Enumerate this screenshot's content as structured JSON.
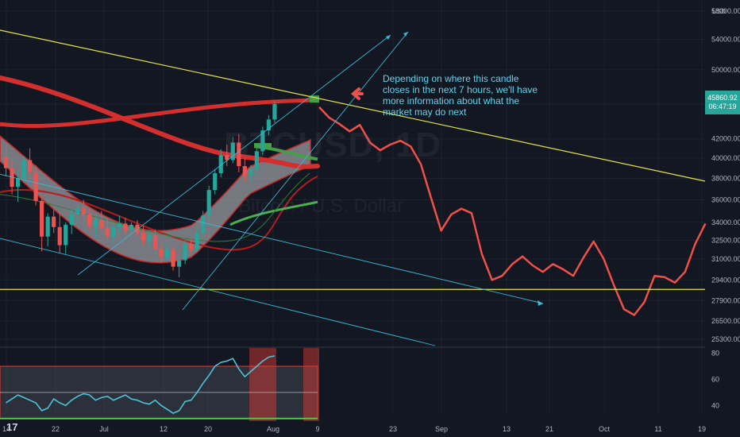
{
  "watermark": {
    "symbol": "BTCUSD, 1D",
    "name": "Bitcoin / U.S. Dollar"
  },
  "annotation": "Depending on where this candle closes in the next 7 hours, we'll have more information about what the market may do next",
  "price_tag": {
    "price": "45860.92",
    "countdown": "06:47:19"
  },
  "currency": "USD",
  "logo": "17",
  "colors": {
    "background": "#131722",
    "up": "#26a69a",
    "down": "#ef5350",
    "trendline": "#e6e24a",
    "projection": "#f0504a",
    "channel": "#3ab8d6",
    "oscillator": "#4dc4d8",
    "ema_band": "#d32f2f",
    "sma_green": "#4caf50"
  },
  "chart_data": {
    "type": "candlestick",
    "title": "",
    "xlabel": "",
    "ylabel": "",
    "x_ticks": [
      "14",
      "22",
      "Jul",
      "12",
      "20",
      "Aug",
      "9",
      "23",
      "Sep",
      "13",
      "21",
      "Oct",
      "11",
      "19"
    ],
    "y_ticks": [
      58000,
      54000,
      50000,
      45860.92,
      42000,
      40000,
      38000,
      36000,
      34000,
      32500,
      31000,
      29400,
      27900,
      26500,
      25300
    ],
    "ylim": [
      25000,
      58000
    ],
    "candles": [
      {
        "o": 40100,
        "h": 41300,
        "l": 38200,
        "c": 39000
      },
      {
        "o": 39000,
        "h": 39800,
        "l": 36500,
        "c": 37200
      },
      {
        "o": 37200,
        "h": 38500,
        "l": 35800,
        "c": 38000
      },
      {
        "o": 38000,
        "h": 40200,
        "l": 37600,
        "c": 39800
      },
      {
        "o": 39800,
        "h": 41000,
        "l": 38000,
        "c": 38600
      },
      {
        "o": 38600,
        "h": 39300,
        "l": 35500,
        "c": 35900
      },
      {
        "o": 35900,
        "h": 36400,
        "l": 31600,
        "c": 32800
      },
      {
        "o": 32800,
        "h": 34800,
        "l": 32000,
        "c": 34500
      },
      {
        "o": 34500,
        "h": 35200,
        "l": 33100,
        "c": 33600
      },
      {
        "o": 33600,
        "h": 34900,
        "l": 31500,
        "c": 32100
      },
      {
        "o": 32100,
        "h": 34000,
        "l": 31400,
        "c": 33800
      },
      {
        "o": 33800,
        "h": 35100,
        "l": 33000,
        "c": 34700
      },
      {
        "o": 34700,
        "h": 35700,
        "l": 34100,
        "c": 35300
      },
      {
        "o": 35300,
        "h": 36000,
        "l": 34300,
        "c": 34700
      },
      {
        "o": 34700,
        "h": 35200,
        "l": 33400,
        "c": 33700
      },
      {
        "o": 33700,
        "h": 34500,
        "l": 32800,
        "c": 34200
      },
      {
        "o": 34200,
        "h": 35000,
        "l": 33200,
        "c": 33500
      },
      {
        "o": 33500,
        "h": 34300,
        "l": 32500,
        "c": 32800
      },
      {
        "o": 32800,
        "h": 33900,
        "l": 32300,
        "c": 33600
      },
      {
        "o": 33600,
        "h": 34600,
        "l": 33200,
        "c": 33900
      },
      {
        "o": 33900,
        "h": 34400,
        "l": 33000,
        "c": 33300
      },
      {
        "o": 33300,
        "h": 34000,
        "l": 32600,
        "c": 33800
      },
      {
        "o": 33800,
        "h": 34200,
        "l": 32800,
        "c": 33100
      },
      {
        "o": 33100,
        "h": 33700,
        "l": 32100,
        "c": 32500
      },
      {
        "o": 32500,
        "h": 33300,
        "l": 31900,
        "c": 32900
      },
      {
        "o": 32900,
        "h": 33400,
        "l": 31400,
        "c": 31800
      },
      {
        "o": 31800,
        "h": 32200,
        "l": 30700,
        "c": 31200
      },
      {
        "o": 31200,
        "h": 32100,
        "l": 30900,
        "c": 31700
      },
      {
        "o": 31700,
        "h": 32000,
        "l": 30100,
        "c": 30400
      },
      {
        "o": 30400,
        "h": 31300,
        "l": 29600,
        "c": 30900
      },
      {
        "o": 30900,
        "h": 32500,
        "l": 30600,
        "c": 32200
      },
      {
        "o": 32200,
        "h": 32600,
        "l": 31500,
        "c": 31800
      },
      {
        "o": 31800,
        "h": 33500,
        "l": 31500,
        "c": 33100
      },
      {
        "o": 33100,
        "h": 35000,
        "l": 32800,
        "c": 34600
      },
      {
        "o": 34600,
        "h": 37300,
        "l": 34200,
        "c": 36900
      },
      {
        "o": 36900,
        "h": 38900,
        "l": 36500,
        "c": 38500
      },
      {
        "o": 38500,
        "h": 40900,
        "l": 38100,
        "c": 40300
      },
      {
        "o": 40300,
        "h": 41400,
        "l": 39200,
        "c": 39800
      },
      {
        "o": 39800,
        "h": 42200,
        "l": 39500,
        "c": 41600
      },
      {
        "o": 41600,
        "h": 42500,
        "l": 38600,
        "c": 39200
      },
      {
        "o": 39200,
        "h": 40000,
        "l": 37700,
        "c": 38300
      },
      {
        "o": 38300,
        "h": 39300,
        "l": 37600,
        "c": 38900
      },
      {
        "o": 38900,
        "h": 41000,
        "l": 38500,
        "c": 40700
      },
      {
        "o": 40700,
        "h": 43300,
        "l": 40300,
        "c": 42900
      },
      {
        "o": 42900,
        "h": 44600,
        "l": 42400,
        "c": 44100
      },
      {
        "o": 44100,
        "h": 46200,
        "l": 43700,
        "c": 45860.92
      }
    ],
    "projection": [
      {
        "d": 0,
        "p": 45500
      },
      {
        "d": 1,
        "p": 44300
      },
      {
        "d": 2,
        "p": 43600
      },
      {
        "d": 3,
        "p": 42800
      },
      {
        "d": 4,
        "p": 43500
      },
      {
        "d": 5,
        "p": 41600
      },
      {
        "d": 6,
        "p": 40800
      },
      {
        "d": 7,
        "p": 41400
      },
      {
        "d": 8,
        "p": 41800
      },
      {
        "d": 9,
        "p": 41200
      },
      {
        "d": 10,
        "p": 39400
      },
      {
        "d": 11,
        "p": 36200
      },
      {
        "d": 12,
        "p": 33300
      },
      {
        "d": 13,
        "p": 34700
      },
      {
        "d": 14,
        "p": 35200
      },
      {
        "d": 15,
        "p": 34800
      },
      {
        "d": 16,
        "p": 31400
      },
      {
        "d": 17,
        "p": 29400
      },
      {
        "d": 18,
        "p": 29700
      },
      {
        "d": 19,
        "p": 30600
      },
      {
        "d": 20,
        "p": 31200
      },
      {
        "d": 21,
        "p": 30500
      },
      {
        "d": 22,
        "p": 30000
      },
      {
        "d": 23,
        "p": 30600
      },
      {
        "d": 24,
        "p": 30200
      },
      {
        "d": 25,
        "p": 29700
      },
      {
        "d": 26,
        "p": 31100
      },
      {
        "d": 27,
        "p": 32400
      },
      {
        "d": 28,
        "p": 31000
      },
      {
        "d": 29,
        "p": 29000
      },
      {
        "d": 30,
        "p": 27300
      },
      {
        "d": 31,
        "p": 26900
      },
      {
        "d": 32,
        "p": 27800
      },
      {
        "d": 33,
        "p": 29700
      },
      {
        "d": 34,
        "p": 29600
      },
      {
        "d": 35,
        "p": 29200
      },
      {
        "d": 36,
        "p": 30000
      },
      {
        "d": 37,
        "p": 32200
      },
      {
        "d": 38,
        "p": 33900
      }
    ],
    "oscillator": {
      "y_ticks": [
        80,
        60,
        40
      ],
      "ylim": [
        28,
        84
      ],
      "levels": [
        70,
        50,
        30
      ],
      "values": [
        42,
        45,
        48,
        46,
        44,
        42,
        36,
        38,
        45,
        42,
        40,
        44,
        47,
        49,
        48,
        44,
        46,
        47,
        44,
        46,
        48,
        45,
        44,
        42,
        41,
        44,
        40,
        37,
        34,
        36,
        43,
        44,
        50,
        57,
        63,
        70,
        73,
        74,
        76,
        68,
        62,
        66,
        70,
        74,
        77,
        78
      ]
    }
  }
}
